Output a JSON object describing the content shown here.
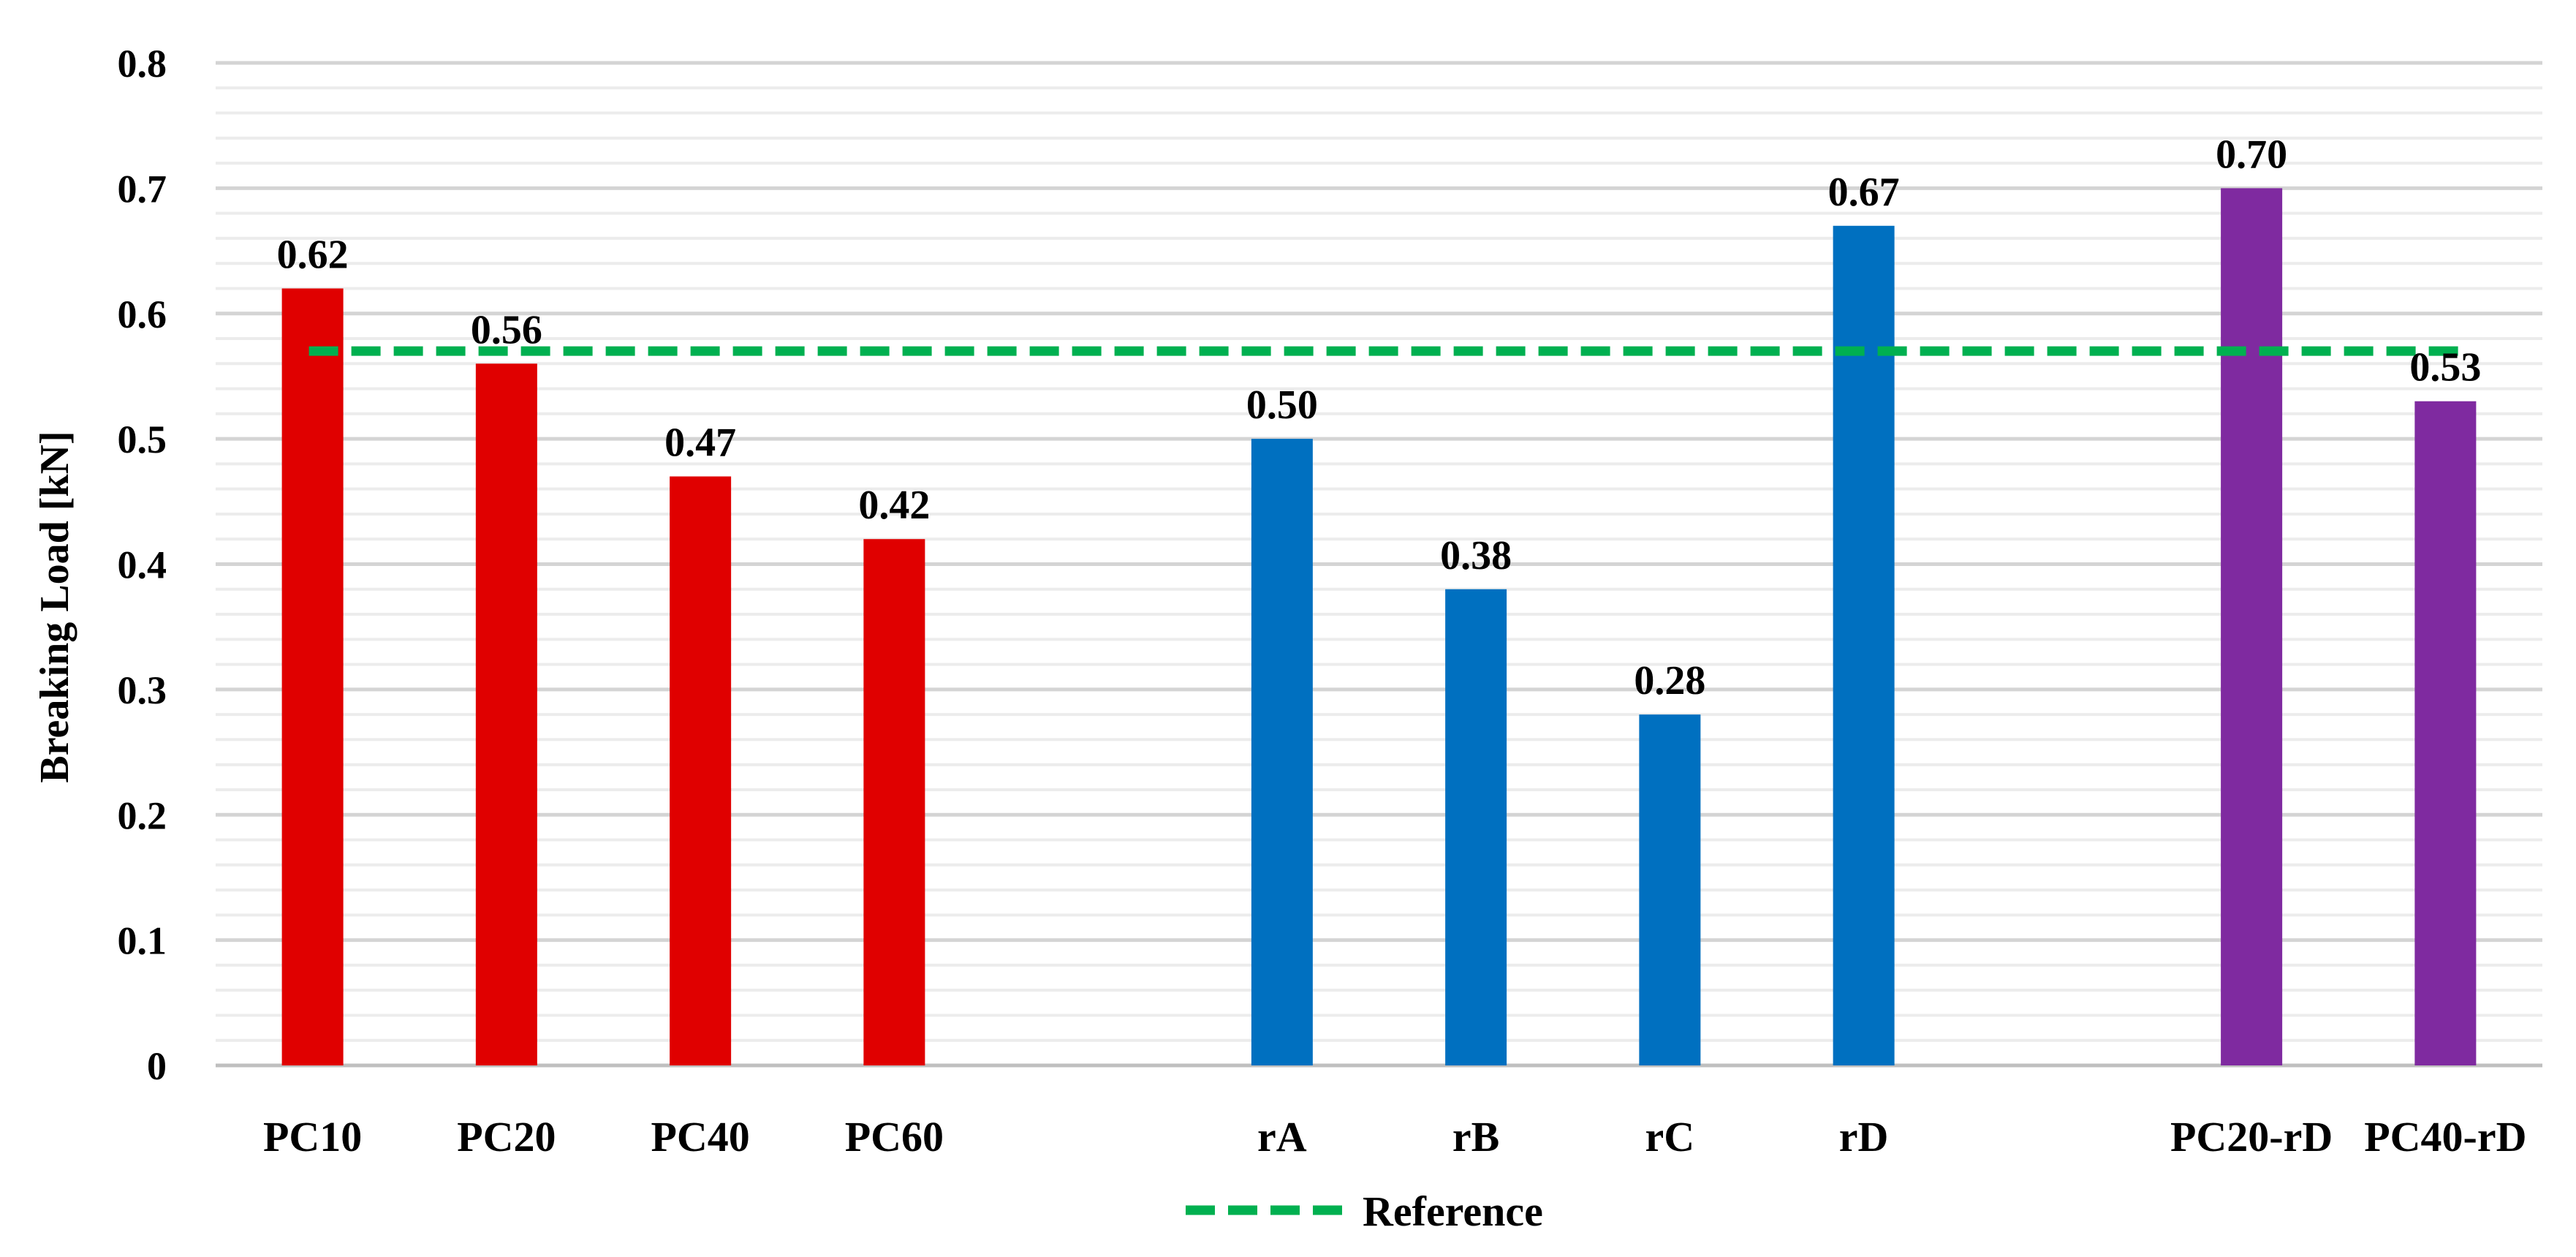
{
  "chart_data": {
    "type": "bar",
    "ylabel": "Breaking Load [kN]",
    "xlabel": "",
    "ylim": [
      0,
      0.8
    ],
    "yticks": [
      0,
      0.1,
      0.2,
      0.3,
      0.4,
      0.5,
      0.6,
      0.7,
      0.8
    ],
    "ytick_labels": [
      "0",
      "0.1",
      "0.2",
      "0.3",
      "0.4",
      "0.5",
      "0.6",
      "0.7",
      "0.8"
    ],
    "grid": true,
    "categories": [
      "PC10",
      "PC20",
      "PC40",
      "PC60",
      "",
      "rA",
      "rB",
      "rC",
      "rD",
      "",
      "PC20-rD",
      "PC40-rD"
    ],
    "values": [
      0.62,
      0.56,
      0.47,
      0.42,
      null,
      0.5,
      0.38,
      0.28,
      0.67,
      null,
      0.7,
      0.53
    ],
    "value_labels": [
      "0.62",
      "0.56",
      "0.47",
      "0.42",
      "",
      "0.50",
      "0.38",
      "0.28",
      "0.67",
      "",
      "0.70",
      "0.53"
    ],
    "bar_colors": [
      "#e00000",
      "#e00000",
      "#e00000",
      "#e00000",
      "",
      "#0070c0",
      "#0070c0",
      "#0070c0",
      "#0070c0",
      "",
      "#7f2aa0",
      "#7f2aa0"
    ],
    "reference": {
      "name": "Reference",
      "value": 0.57,
      "color": "#00b050"
    },
    "legend": {
      "entries": [
        "Reference"
      ],
      "position": "bottom"
    }
  }
}
